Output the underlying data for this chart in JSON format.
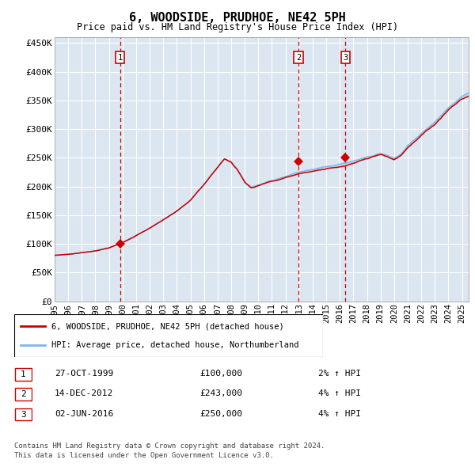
{
  "title": "6, WOODSIDE, PRUDHOE, NE42 5PH",
  "subtitle": "Price paid vs. HM Land Registry's House Price Index (HPI)",
  "ylabel_ticks": [
    "£0",
    "£50K",
    "£100K",
    "£150K",
    "£200K",
    "£250K",
    "£300K",
    "£350K",
    "£400K",
    "£450K"
  ],
  "ytick_values": [
    0,
    50000,
    100000,
    150000,
    200000,
    250000,
    300000,
    350000,
    400000,
    450000
  ],
  "ylim": [
    0,
    460000
  ],
  "xlim_start": 1995.0,
  "xlim_end": 2025.5,
  "background_color": "#dce6f1",
  "plot_bg_color": "#dce6f1",
  "grid_color": "#ffffff",
  "hpi_line_color": "#7EB6E8",
  "price_line_color": "#CC0000",
  "sale_marker_color": "#CC0000",
  "dashed_line_color": "#CC0000",
  "legend_label_red": "6, WOODSIDE, PRUDHOE, NE42 5PH (detached house)",
  "legend_label_blue": "HPI: Average price, detached house, Northumberland",
  "transactions": [
    {
      "num": 1,
      "date": "27-OCT-1999",
      "price": 100000,
      "pct": "2%",
      "x": 1999.82
    },
    {
      "num": 2,
      "date": "14-DEC-2012",
      "price": 243000,
      "pct": "4%",
      "x": 2012.95
    },
    {
      "num": 3,
      "date": "02-JUN-2016",
      "price": 250000,
      "pct": "4%",
      "x": 2016.42
    }
  ],
  "footnote1": "Contains HM Land Registry data © Crown copyright and database right 2024.",
  "footnote2": "This data is licensed under the Open Government Licence v3.0.",
  "xtick_years": [
    1995,
    1996,
    1997,
    1998,
    1999,
    2000,
    2001,
    2002,
    2003,
    2004,
    2005,
    2006,
    2007,
    2008,
    2009,
    2010,
    2011,
    2012,
    2013,
    2014,
    2015,
    2016,
    2017,
    2018,
    2019,
    2020,
    2021,
    2022,
    2023,
    2024,
    2025
  ],
  "hpi_knots_x": [
    1995,
    1996,
    1997,
    1998,
    1999,
    2000,
    2001,
    2002,
    2003,
    2004,
    2005,
    2006,
    2007,
    2007.5,
    2008,
    2008.5,
    2009,
    2009.5,
    2010,
    2011,
    2012,
    2013,
    2014,
    2015,
    2016,
    2016.5,
    2017,
    2018,
    2019,
    2019.5,
    2020,
    2020.5,
    2021,
    2022,
    2023,
    2024,
    2025,
    2025.5
  ],
  "hpi_knots_y": [
    80000,
    82000,
    85000,
    88000,
    93000,
    102000,
    115000,
    128000,
    143000,
    158000,
    177000,
    205000,
    235000,
    250000,
    245000,
    230000,
    210000,
    200000,
    205000,
    213000,
    220000,
    228000,
    232000,
    238000,
    242000,
    245000,
    248000,
    255000,
    262000,
    258000,
    252000,
    260000,
    275000,
    298000,
    318000,
    345000,
    365000,
    370000
  ]
}
